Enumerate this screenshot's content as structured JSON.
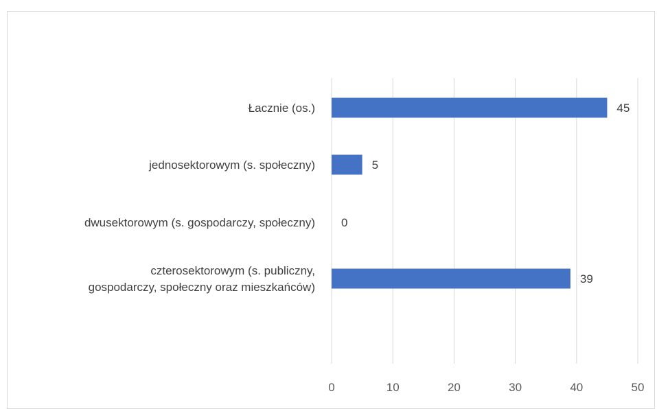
{
  "chart_data": {
    "type": "bar",
    "orientation": "horizontal",
    "title": "",
    "xlabel": "",
    "ylabel": "",
    "categories": [
      [
        "Łacznie (os.)"
      ],
      [
        "jednosektorowym (s. społeczny)"
      ],
      [
        "dwusektorowym (s. gospodarczy, społeczny)"
      ],
      [
        "czterosektorowym (s. publiczny,",
        "gospodarczy, społeczny oraz mieszkańców)"
      ]
    ],
    "values": [
      45,
      5,
      0,
      39
    ],
    "xlim": [
      0,
      50
    ],
    "xticks": [
      "0",
      "10",
      "20",
      "30",
      "40",
      "50"
    ],
    "grid": "vertical",
    "bar_color": "#4472c4",
    "gridline_color": "#d9d9d9"
  }
}
